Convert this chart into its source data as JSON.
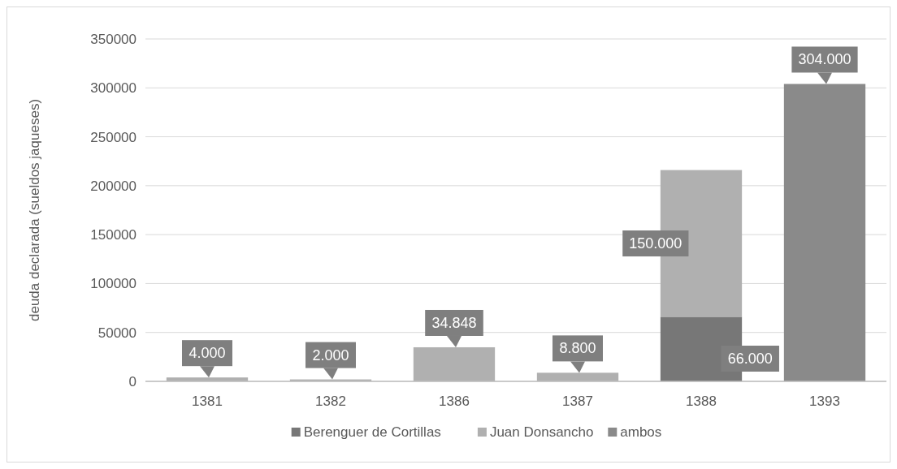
{
  "chart_data": {
    "type": "bar",
    "stacked": true,
    "ylabel": "deuda declarada (sueldos jaqueses)",
    "categories": [
      "1381",
      "1382",
      "1386",
      "1387",
      "1388",
      "1393"
    ],
    "series": [
      {
        "name": "Berenguer de Cortillas",
        "color": "#777777",
        "values": [
          null,
          null,
          null,
          null,
          66000,
          null
        ],
        "value_labels": [
          null,
          null,
          null,
          null,
          "66.000",
          null
        ]
      },
      {
        "name": "Juan Donsancho",
        "color": "#b0b0b0",
        "values": [
          4000,
          2000,
          34848,
          8800,
          150000,
          null
        ],
        "value_labels": [
          "4.000",
          "2.000",
          "34.848",
          "8.800",
          "150.000",
          null
        ]
      },
      {
        "name": "ambos",
        "color": "#8a8a8a",
        "values": [
          null,
          null,
          null,
          null,
          null,
          304000
        ],
        "value_labels": [
          null,
          null,
          null,
          null,
          null,
          "304.000"
        ]
      }
    ],
    "ylim": [
      0,
      350000
    ],
    "yticks": [
      0,
      50000,
      100000,
      150000,
      200000,
      250000,
      300000,
      350000
    ],
    "grid": "y",
    "legend": "bottom"
  }
}
